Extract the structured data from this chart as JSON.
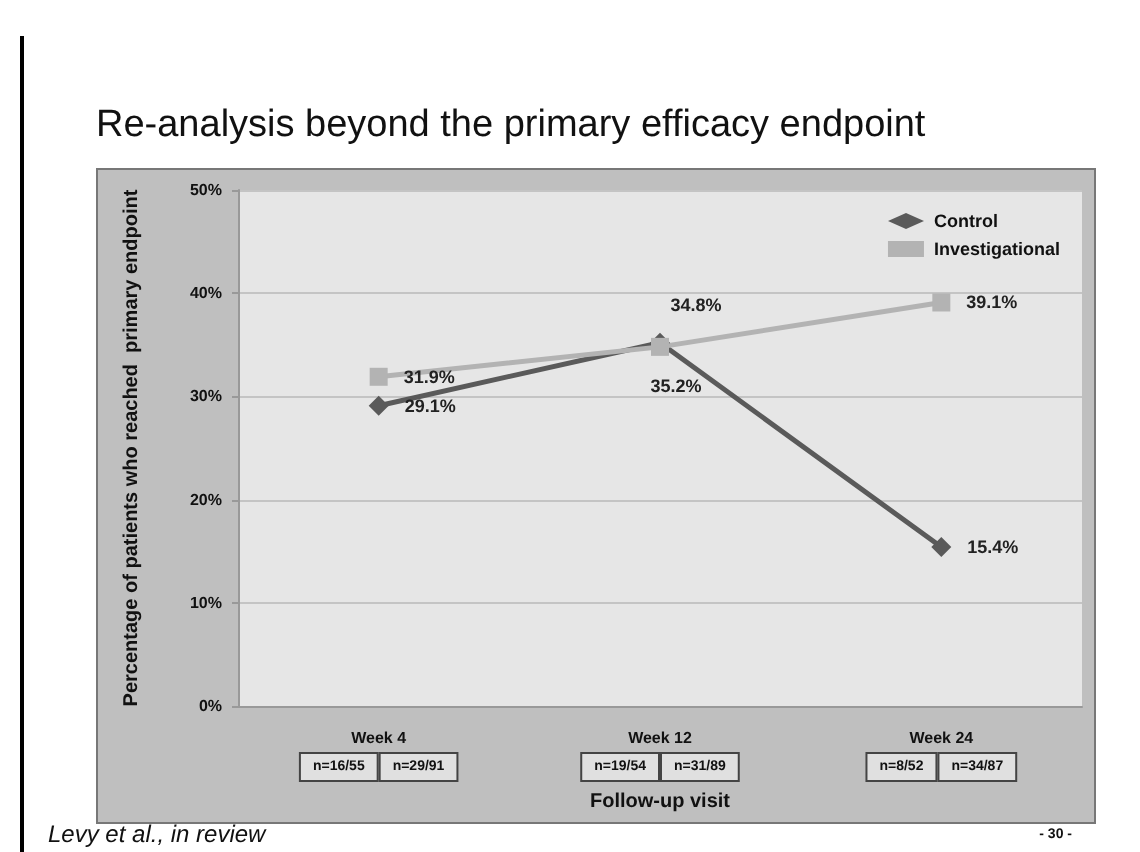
{
  "chart_data": {
    "type": "line",
    "title": "Re-analysis beyond the primary efficacy endpoint",
    "xlabel": "Follow-up visit",
    "ylabel": "Percentage of patients who reached  primary endpoint",
    "categories": [
      "Week 4",
      "Week 12",
      "Week 24"
    ],
    "series": [
      {
        "name": "Control",
        "color": "#5a5a5a",
        "values": [
          29.1,
          35.2,
          15.4
        ],
        "marker": "diamond",
        "value_labels": [
          "29.1%",
          "35.2%",
          "15.4%"
        ]
      },
      {
        "name": "Investigational",
        "color": "#b3b3b3",
        "values": [
          31.9,
          34.8,
          39.1
        ],
        "marker": "square",
        "value_labels": [
          "31.9%",
          "34.8%",
          "39.1%"
        ]
      }
    ],
    "ylim": [
      0,
      50
    ],
    "yticks": [
      {
        "value": 0,
        "label": "0%"
      },
      {
        "value": 10,
        "label": "10%"
      },
      {
        "value": 20,
        "label": "20%"
      },
      {
        "value": 30,
        "label": "30%"
      },
      {
        "value": 40,
        "label": "40%"
      },
      {
        "value": 50,
        "label": "50%"
      }
    ],
    "grid": "y",
    "legend": "top right",
    "annotations": [
      "n=16/55",
      "n=29/91",
      "n=19/54",
      "n=31/89",
      "n=8/52",
      "n=34/87",
      "Levy et al., in review",
      "- 30 -"
    ]
  }
}
